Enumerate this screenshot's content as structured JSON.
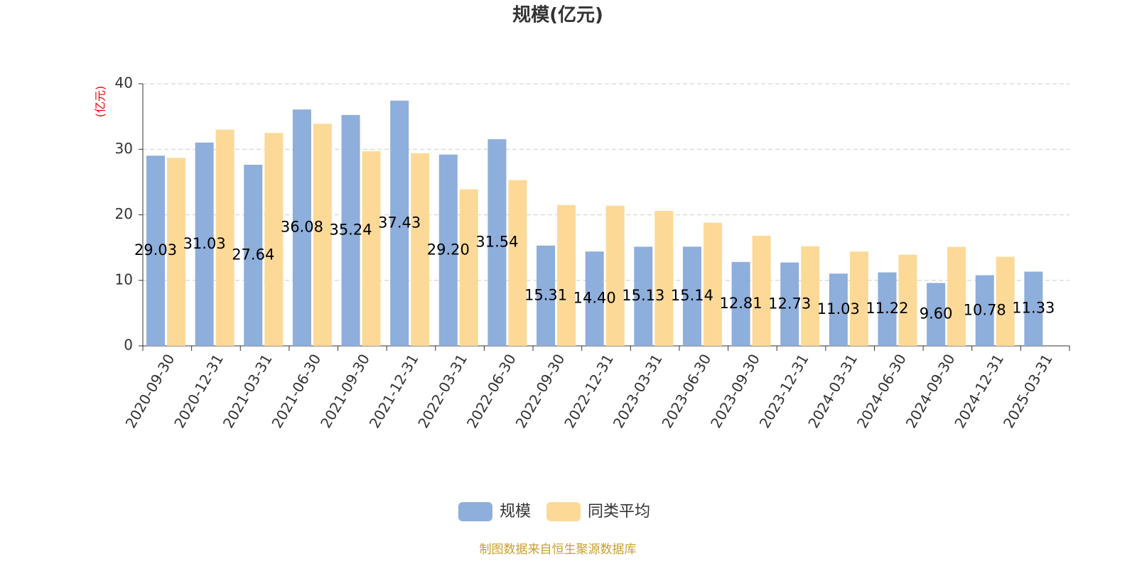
{
  "chart_data": {
    "type": "bar",
    "title": "规模(亿元)",
    "y_label": "(亿元)",
    "source": "制图数据来自恒生聚源数据库",
    "categories": [
      "2020-09-30",
      "2020-12-31",
      "2021-03-31",
      "2021-06-30",
      "2021-09-30",
      "2021-12-31",
      "2022-03-31",
      "2022-06-30",
      "2022-09-30",
      "2022-12-31",
      "2023-03-31",
      "2023-06-30",
      "2023-09-30",
      "2023-12-31",
      "2024-03-31",
      "2024-06-30",
      "2024-09-30",
      "2024-12-31",
      "2025-03-31"
    ],
    "series": [
      {
        "name": "规模",
        "color": "#8eaedb",
        "values": [
          29.03,
          31.03,
          27.64,
          36.08,
          35.24,
          37.43,
          29.2,
          31.54,
          15.31,
          14.4,
          15.13,
          15.14,
          12.81,
          12.73,
          11.03,
          11.22,
          9.6,
          10.78,
          11.33
        ],
        "value_labels": [
          "29.03",
          "31.03",
          "27.64",
          "36.08",
          "35.24",
          "37.43",
          "29.20",
          "31.54",
          "15.31",
          "14.40",
          "15.13",
          "15.14",
          "12.81",
          "12.73",
          "11.03",
          "11.22",
          "9.60",
          "10.78",
          "11.33"
        ]
      },
      {
        "name": "同类平均",
        "color": "#fdd998",
        "values": [
          28.7,
          33.0,
          32.5,
          33.9,
          29.7,
          29.4,
          23.9,
          25.3,
          21.5,
          21.4,
          20.6,
          18.8,
          16.8,
          15.2,
          14.4,
          13.9,
          15.1,
          13.6,
          null
        ]
      }
    ],
    "ylim": [
      0,
      40
    ],
    "yticks": [
      0,
      10,
      20,
      30,
      40
    ],
    "grid": true,
    "legend": "bottom"
  }
}
